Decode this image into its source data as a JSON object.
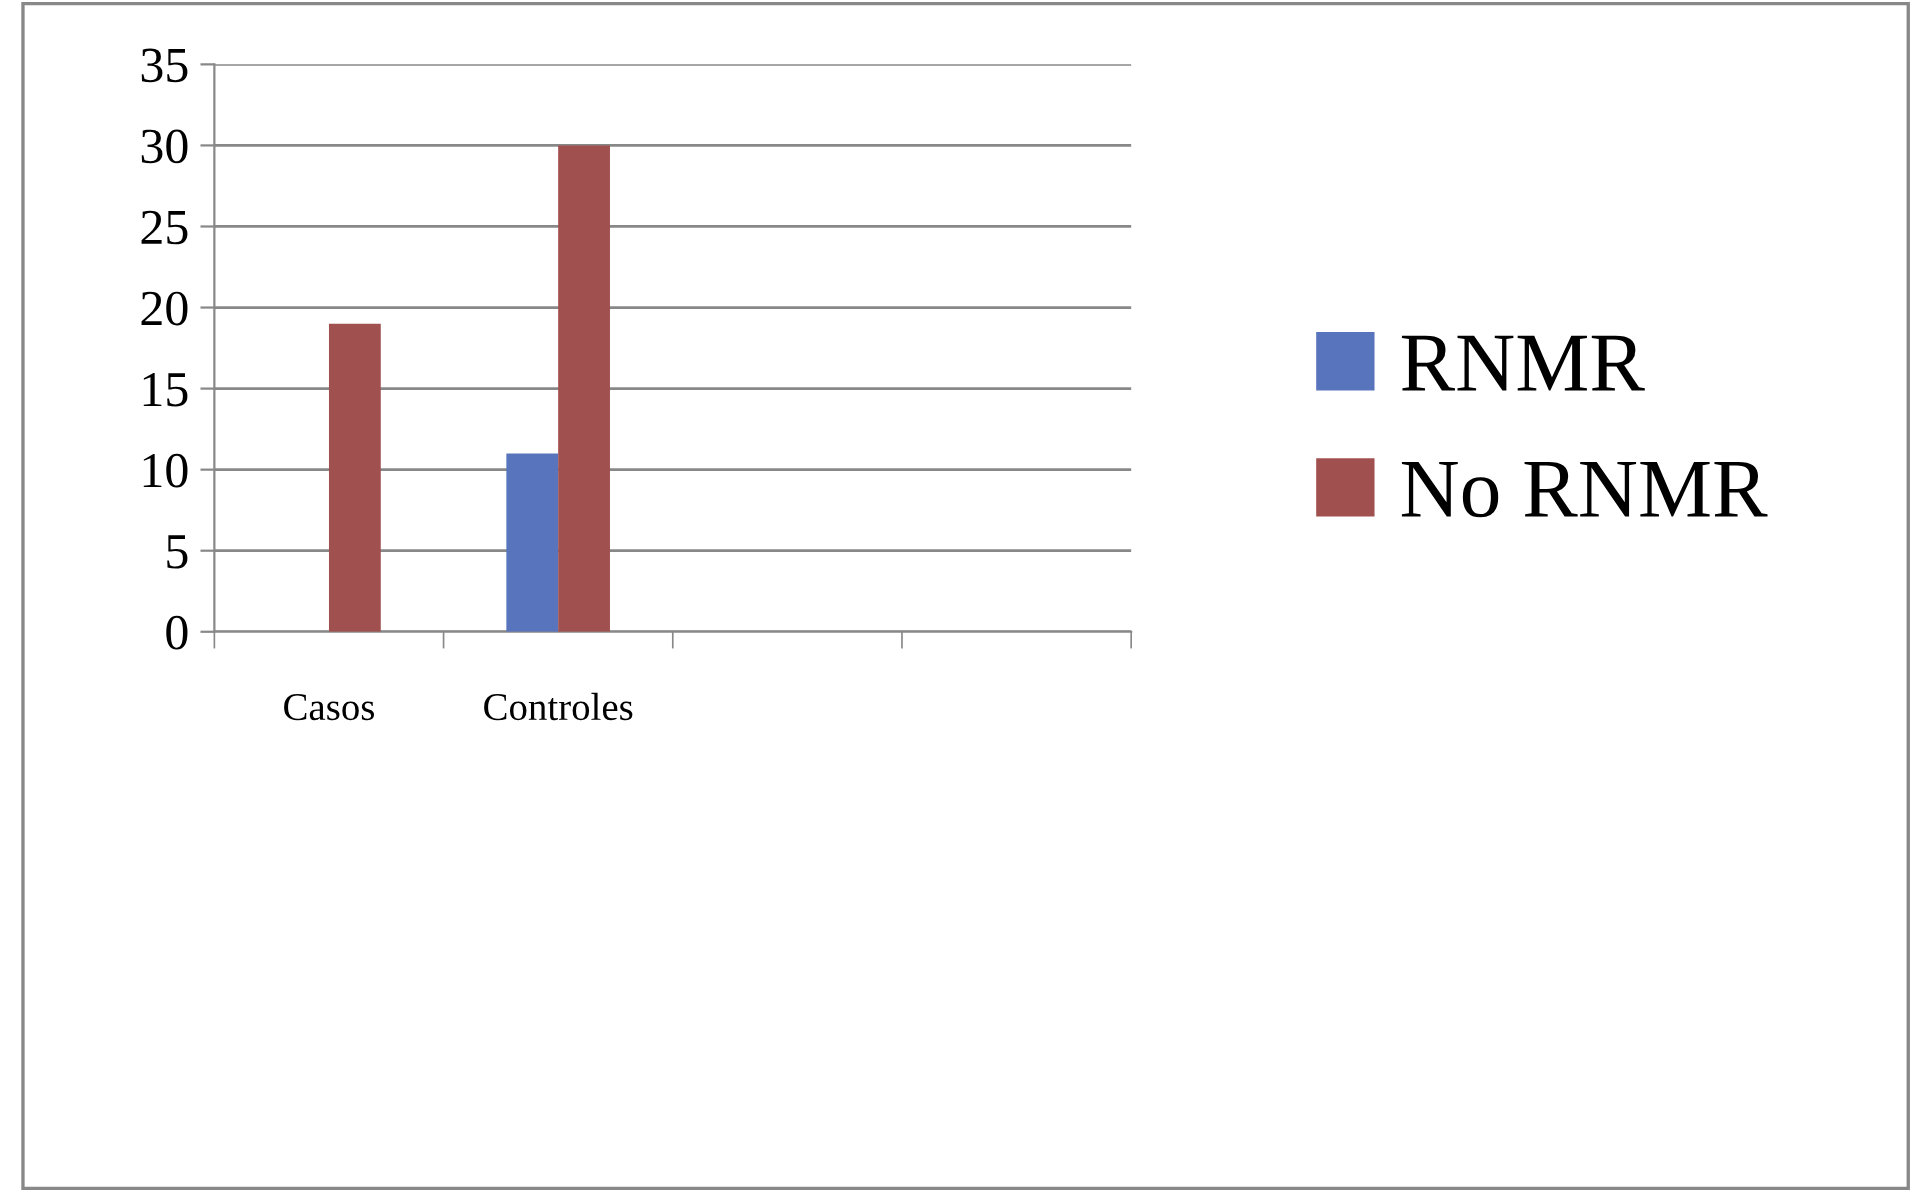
{
  "chart_data": {
    "type": "bar",
    "categories": [
      "Casos",
      "Controles",
      null,
      null
    ],
    "series": [
      {
        "name": "RNMR",
        "color": "#5874bc",
        "values": [
          0,
          11,
          null,
          null
        ]
      },
      {
        "name": "No RNMR",
        "color": "#a0504e",
        "values": [
          19,
          30,
          null,
          null
        ]
      }
    ],
    "ylim": [
      0,
      35
    ],
    "yticks": [
      0,
      5,
      10,
      15,
      20,
      25,
      30,
      35
    ],
    "grid": "y",
    "legend": "right"
  }
}
